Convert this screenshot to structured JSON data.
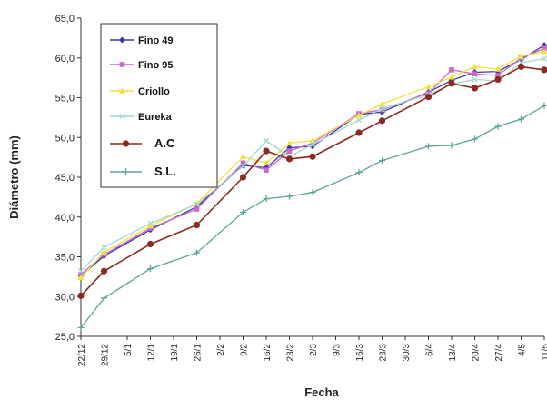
{
  "chart_data": {
    "type": "line",
    "xlabel": "Fecha",
    "ylabel": "Diámetro (mm)",
    "ylim": [
      25,
      65
    ],
    "yticks": [
      "25,0",
      "30,0",
      "35,0",
      "40,0",
      "45,0",
      "50,0",
      "55,0",
      "60,0",
      "65,0"
    ],
    "categories": [
      "22/12",
      "29/12",
      "5/1",
      "12/1",
      "19/1",
      "26/1",
      "2/2",
      "9/2",
      "16/2",
      "23/2",
      "2/3",
      "9/3",
      "16/3",
      "23/3",
      "30/3",
      "6/4",
      "13/4",
      "20/4",
      "27/4",
      "4/5",
      "11/5"
    ],
    "legend_position": "top-left",
    "grid": false,
    "series": [
      {
        "name": "Fino 49",
        "color": "#3a3aa0",
        "marker": "diamond",
        "values": [
          32.6,
          35.1,
          null,
          38.4,
          null,
          41.3,
          null,
          46.5,
          46.2,
          48.7,
          48.9,
          null,
          52.9,
          53.2,
          null,
          55.7,
          57.2,
          58.2,
          58.3,
          59.8,
          61.6
        ]
      },
      {
        "name": "Fino 95",
        "color": "#cc66cc",
        "marker": "square",
        "values": [
          32.8,
          35.3,
          null,
          38.6,
          null,
          41.0,
          null,
          46.8,
          45.9,
          48.3,
          49.3,
          null,
          53.0,
          53.5,
          null,
          55.6,
          58.5,
          58.0,
          57.8,
          60.0,
          61.2
        ]
      },
      {
        "name": "Criollo",
        "color": "#f2e23a",
        "marker": "triangle",
        "values": [
          32.4,
          35.6,
          null,
          38.9,
          null,
          41.7,
          null,
          47.6,
          46.8,
          49.3,
          49.6,
          null,
          52.8,
          54.2,
          null,
          56.4,
          57.6,
          58.9,
          58.6,
          60.2,
          60.8
        ]
      },
      {
        "name": "Eureka",
        "color": "#9fd9cf",
        "marker": "x",
        "values": [
          33.2,
          36.2,
          null,
          39.2,
          null,
          41.6,
          null,
          46.4,
          49.6,
          47.6,
          49.1,
          null,
          52.2,
          53.6,
          null,
          55.4,
          56.7,
          57.3,
          57.1,
          59.4,
          59.9
        ]
      },
      {
        "name": "A.C",
        "color": "#8b2a1e",
        "marker": "circle",
        "values": [
          30.1,
          33.2,
          null,
          36.6,
          null,
          39.0,
          null,
          45.0,
          48.3,
          47.3,
          47.6,
          null,
          50.6,
          52.1,
          null,
          55.1,
          56.8,
          56.2,
          57.3,
          58.9,
          58.5
        ]
      },
      {
        "name": "S.L.",
        "color": "#5aa39a",
        "marker": "plus",
        "values": [
          26.1,
          29.8,
          null,
          33.5,
          null,
          35.5,
          null,
          40.6,
          42.3,
          42.6,
          43.1,
          null,
          45.6,
          47.1,
          null,
          48.9,
          49.0,
          49.8,
          51.4,
          52.3,
          54.0
        ]
      }
    ]
  }
}
